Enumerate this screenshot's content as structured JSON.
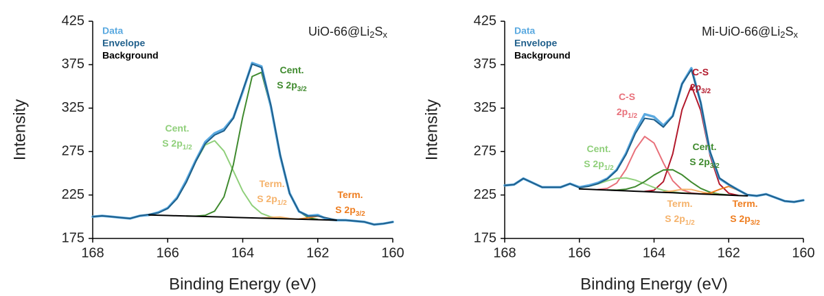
{
  "chart_data": [
    {
      "type": "line",
      "xlabel": "Binding Energy (eV)",
      "ylabel": "Intensity",
      "annotation": [
        "UiO-66@Li",
        "2",
        "S",
        "x"
      ],
      "xlim": [
        168,
        160
      ],
      "xticks": [
        168,
        166,
        164,
        162,
        160
      ],
      "ylim": [
        175,
        425
      ],
      "yticks": [
        175,
        225,
        275,
        325,
        375,
        425
      ],
      "grid": false,
      "x": [
        168,
        167.75,
        167.5,
        167.25,
        167,
        166.75,
        166.5,
        166.25,
        166,
        165.75,
        165.5,
        165.25,
        165,
        164.75,
        164.5,
        164.25,
        164,
        163.75,
        163.5,
        163.25,
        163,
        162.75,
        162.5,
        162.25,
        162,
        161.75,
        161.5,
        161.25,
        161,
        160.75,
        160.5,
        160.25,
        160
      ],
      "series": [
        {
          "name": "Data",
          "color": "#5aa9e0",
          "values": [
            200,
            201,
            200,
            199,
            198,
            201,
            202,
            205,
            210,
            222,
            242,
            265,
            286,
            296,
            301,
            314,
            344,
            377,
            373,
            327,
            270,
            227,
            206,
            201,
            202,
            197,
            196,
            196,
            195,
            194,
            191,
            192,
            194
          ]
        },
        {
          "name": "Envelope",
          "color": "#1f5f8b",
          "values": [
            200,
            201,
            200,
            199,
            198,
            201,
            202.7,
            204.4,
            209.5,
            220.9,
            240.0,
            263.7,
            284.0,
            294.0,
            298.8,
            313.3,
            345.4,
            375.7,
            371.6,
            328.3,
            271.0,
            226.7,
            206.1,
            200.7,
            200.9,
            198.5,
            196.2,
            196,
            195,
            194,
            191,
            192,
            194
          ]
        },
        {
          "name": "Background",
          "color": "#000000",
          "values": [
            null,
            null,
            null,
            null,
            null,
            null,
            202,
            201.7,
            201.4,
            201.1,
            200.8,
            200.5,
            200.2,
            199.9,
            199.6,
            199.3,
            199,
            198.7,
            198.4,
            198.1,
            197.8,
            197.5,
            197.2,
            196.9,
            196.6,
            196.3,
            196,
            null,
            null,
            null,
            null,
            null,
            null
          ]
        },
        {
          "label": [
            [
              "Cent."
            ],
            [
              "S 2p",
              "1/2"
            ]
          ],
          "color": "#8fcf7a",
          "values": [
            null,
            null,
            null,
            null,
            null,
            null,
            202.7,
            204.4,
            209.5,
            220.9,
            240,
            263.5,
            282.6,
            287.5,
            275.5,
            252.7,
            229.5,
            213,
            203.8,
            199.8,
            198.2,
            197.6,
            null,
            null,
            null,
            null,
            null,
            null,
            null,
            null,
            null,
            null,
            null
          ]
        },
        {
          "label": [
            [
              "Cent."
            ],
            [
              "S 2p",
              "3/2"
            ]
          ],
          "color": "#3f8a2e",
          "values": [
            null,
            null,
            null,
            null,
            null,
            null,
            null,
            null,
            null,
            null,
            200.8,
            200.7,
            201.6,
            206.4,
            222.9,
            259.9,
            314.9,
            361.4,
            366.2,
            325.2,
            268.5,
            226.4,
            205.9,
            198.8,
            196.9,
            null,
            null,
            null,
            null,
            null,
            null,
            null,
            null
          ]
        },
        {
          "label": [
            [
              "Term."
            ],
            [
              "S 2p",
              "1/2"
            ]
          ],
          "color": "#f5b26b",
          "values": [
            null,
            null,
            null,
            null,
            null,
            null,
            null,
            null,
            null,
            null,
            null,
            null,
            null,
            null,
            null,
            null,
            null,
            null,
            198.4,
            199.3,
            199.7,
            198.0,
            197.2,
            null,
            null,
            null,
            null,
            null,
            null,
            null,
            null,
            null,
            null
          ]
        },
        {
          "label": [
            [
              "Term."
            ],
            [
              "S 2p",
              "3/2"
            ]
          ],
          "color": "#ee7d1f",
          "values": [
            null,
            null,
            null,
            null,
            null,
            null,
            null,
            null,
            null,
            null,
            null,
            null,
            null,
            null,
            null,
            null,
            null,
            null,
            null,
            null,
            null,
            null,
            197.4,
            198.8,
            200.6,
            198.5,
            196.2,
            null,
            null,
            null,
            null,
            null,
            null
          ]
        }
      ]
    },
    {
      "type": "line",
      "xlabel": "Binding Energy (eV)",
      "ylabel": "Intensity",
      "annotation": [
        "Mi-UiO-66@Li",
        "2",
        "S",
        "x"
      ],
      "xlim": [
        168,
        160
      ],
      "xticks": [
        168,
        166,
        164,
        162,
        160
      ],
      "ylim": [
        175,
        425
      ],
      "yticks": [
        175,
        225,
        275,
        325,
        375,
        425
      ],
      "grid": false,
      "x": [
        168,
        167.75,
        167.5,
        167.25,
        167,
        166.75,
        166.5,
        166.25,
        166,
        165.75,
        165.5,
        165.25,
        165,
        164.75,
        164.5,
        164.25,
        164,
        163.75,
        163.5,
        163.25,
        163,
        162.75,
        162.5,
        162.25,
        162,
        161.75,
        161.5,
        161.25,
        161,
        160.75,
        160.5,
        160.25,
        160
      ],
      "series": [
        {
          "name": "Data",
          "color": "#5aa9e0",
          "values": [
            236,
            237,
            244,
            239,
            234,
            234,
            234,
            238,
            234,
            236,
            239,
            244,
            254,
            273,
            298,
            318,
            315,
            305,
            316,
            353,
            371,
            331,
            274,
            244,
            237,
            231,
            225,
            224,
            226,
            222,
            218,
            217,
            219
          ]
        },
        {
          "name": "Envelope",
          "color": "#1f5f8b",
          "values": [
            236,
            237,
            244,
            239,
            234,
            234,
            234,
            238,
            233.4,
            235.0,
            238.1,
            243.5,
            253.3,
            271.5,
            295.8,
            313.3,
            311.7,
            303.1,
            315.6,
            352.8,
            369.3,
            331.4,
            275.0,
            244.6,
            237.2,
            230.7,
            225.4,
            224,
            226,
            222,
            218,
            217,
            219
          ]
        },
        {
          "name": "Background",
          "color": "#000000",
          "values": [
            null,
            null,
            null,
            null,
            null,
            null,
            null,
            null,
            232,
            231.6,
            231.1,
            230.7,
            230.2,
            229.8,
            229.3,
            228.9,
            228.4,
            228,
            227.6,
            227.1,
            226.7,
            226.2,
            225.8,
            225.3,
            224.9,
            224.4,
            224,
            null,
            null,
            null,
            null,
            null,
            null
          ]
        },
        {
          "label": [
            [
              "C-S"
            ],
            [
              "2p",
              "1/2"
            ]
          ],
          "color": "#e8707a",
          "values": [
            null,
            null,
            null,
            null,
            null,
            null,
            null,
            null,
            null,
            null,
            231.4,
            232.7,
            238.8,
            254.7,
            277.6,
            292.4,
            284.8,
            262.0,
            241.4,
            230.9,
            227.4,
            226.3,
            null,
            null,
            null,
            null,
            null,
            null,
            null,
            null,
            null,
            null,
            null
          ]
        },
        {
          "label": [
            [
              "C-S"
            ],
            [
              "2p",
              "3/2"
            ]
          ],
          "color": "#b2182b",
          "values": [
            null,
            null,
            null,
            null,
            null,
            null,
            null,
            null,
            null,
            null,
            null,
            null,
            null,
            null,
            null,
            229.1,
            230.5,
            240.4,
            272.3,
            323.2,
            350.7,
            322.3,
            270.5,
            237.7,
            227.0,
            224.6,
            null,
            null,
            null,
            null,
            null,
            null,
            null
          ]
        },
        {
          "label": [
            [
              "Cent."
            ],
            [
              "S 2p",
              "1/2"
            ]
          ],
          "color": "#8fcf7a",
          "values": [
            null,
            null,
            null,
            null,
            null,
            null,
            null,
            null,
            233.4,
            235.0,
            237.8,
            241.4,
            244.2,
            244.7,
            242.2,
            238.0,
            233.6,
            230.4,
            228.5,
            227.4,
            226.8,
            null,
            null,
            null,
            null,
            null,
            null,
            null,
            null,
            null,
            null,
            null,
            null
          ]
        },
        {
          "label": [
            [
              "Cent."
            ],
            [
              "S 2p",
              "3/2"
            ]
          ],
          "color": "#3f8a2e",
          "values": [
            null,
            null,
            null,
            null,
            null,
            null,
            null,
            null,
            null,
            null,
            null,
            230.8,
            230.7,
            231.7,
            234.6,
            240.5,
            248.0,
            253.8,
            254.1,
            248.2,
            239.8,
            232.6,
            228.2,
            226.0,
            225.1,
            null,
            null,
            null,
            null,
            null,
            null,
            null,
            null
          ]
        },
        {
          "label": [
            [
              "Term."
            ],
            [
              "S 2p",
              "1/2"
            ]
          ],
          "color": "#f5b26b",
          "values": [
            null,
            null,
            null,
            null,
            null,
            null,
            null,
            null,
            null,
            null,
            null,
            null,
            null,
            null,
            null,
            null,
            null,
            228.5,
            229.7,
            231.5,
            231.4,
            228.7,
            226.5,
            225.4,
            null,
            null,
            null,
            null,
            null,
            null,
            null,
            null,
            null
          ]
        },
        {
          "label": [
            [
              "Term."
            ],
            [
              "S 2p",
              "3/2"
            ]
          ],
          "color": "#ee7d1f",
          "values": [
            null,
            null,
            null,
            null,
            null,
            null,
            null,
            null,
            null,
            null,
            null,
            null,
            null,
            null,
            null,
            null,
            null,
            null,
            null,
            null,
            null,
            226.3,
            227.2,
            231.4,
            234.9,
            230.5,
            225.4,
            null,
            null,
            null,
            null,
            null,
            null
          ]
        }
      ]
    }
  ]
}
